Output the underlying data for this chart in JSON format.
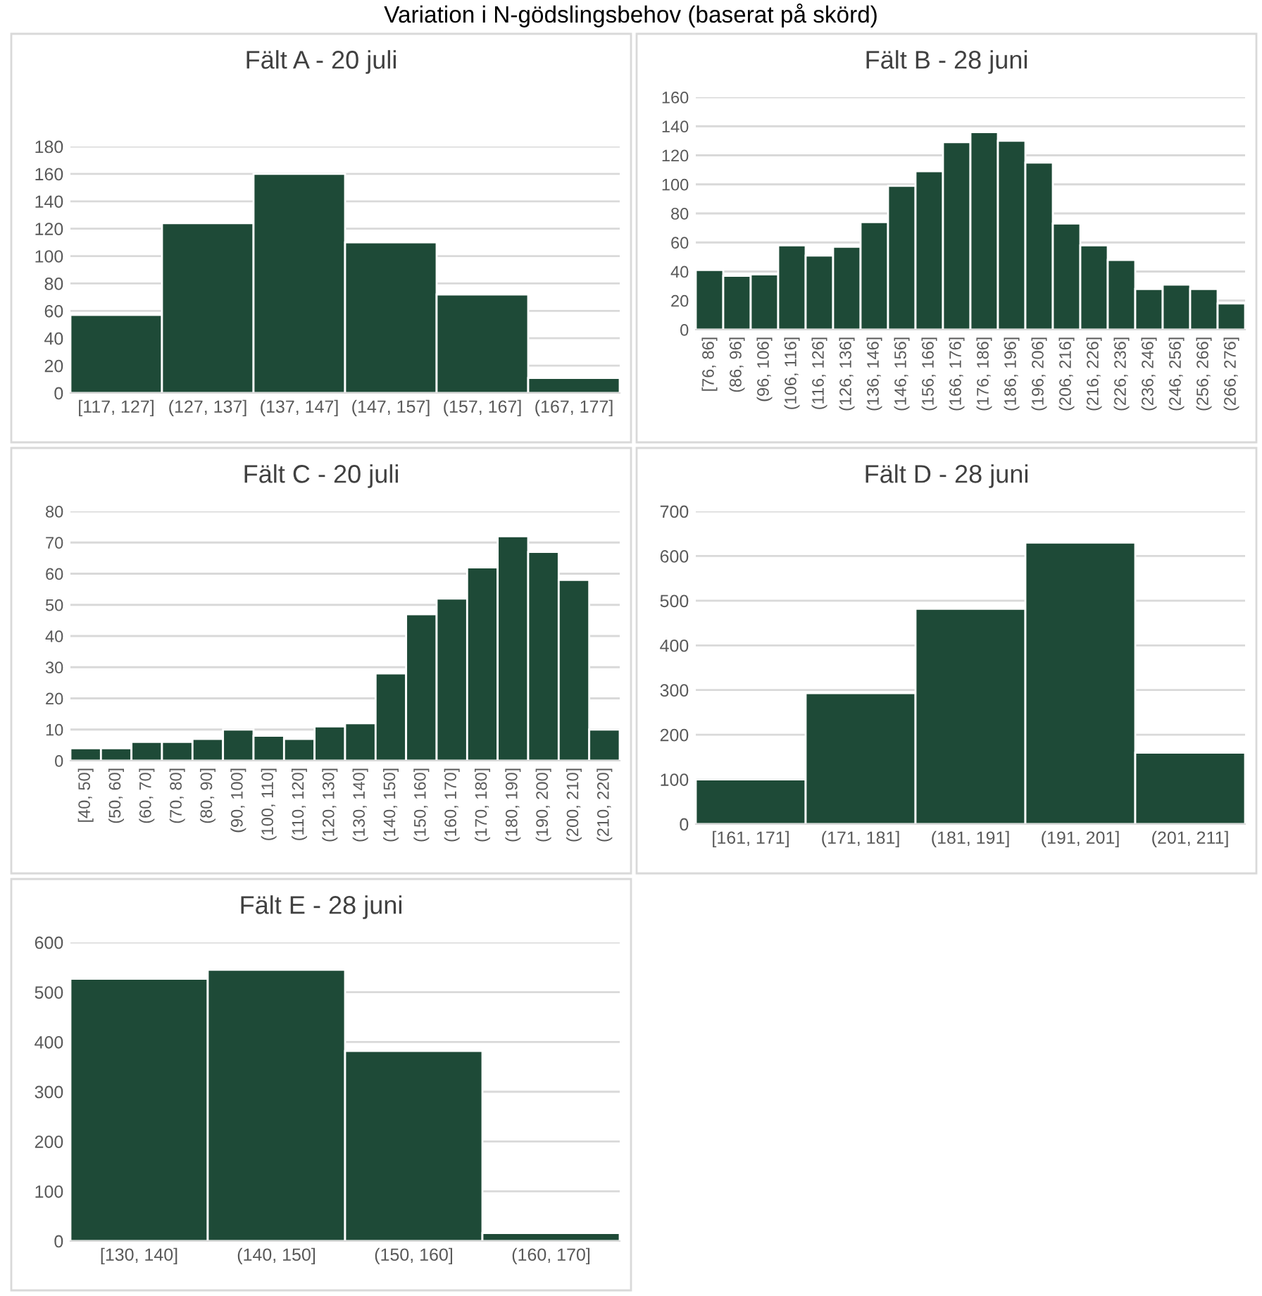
{
  "chart_data": [
    {
      "type": "bar",
      "title": "Fält A - 20 juli",
      "annotations": [
        "Variation i N-gödslingsbehov (baserat på skörd)"
      ],
      "categories": [
        "[117, 127]",
        "(127, 137]",
        "(137, 147]",
        "(147, 157]",
        "(157, 167]",
        "(167, 177]"
      ],
      "values": [
        57,
        124,
        160,
        110,
        72,
        11
      ],
      "color": "#1e4a37",
      "ylim": [
        0,
        180
      ],
      "yticks": [
        0,
        20,
        40,
        60,
        80,
        100,
        120,
        140,
        160,
        180
      ],
      "grid": "y",
      "legend": false
    },
    {
      "type": "bar",
      "title": "Fält B - 28 juni",
      "categories": [
        "[76, 86]",
        "(86, 96]",
        "(96, 106]",
        "(106, 116]",
        "(116, 126]",
        "(126, 136]",
        "(136, 146]",
        "(146, 156]",
        "(156, 166]",
        "(166, 176]",
        "(176, 186]",
        "(186, 196]",
        "(196, 206]",
        "(206, 216]",
        "(216, 226]",
        "(226, 236]",
        "(236, 246]",
        "(246, 256]",
        "(256, 266]",
        "(266, 276]"
      ],
      "values": [
        41,
        37,
        38,
        58,
        51,
        57,
        74,
        99,
        109,
        129,
        136,
        130,
        115,
        73,
        58,
        48,
        28,
        31,
        28,
        18
      ],
      "color": "#1e4a37",
      "ylim": [
        0,
        160
      ],
      "yticks": [
        0,
        20,
        40,
        60,
        80,
        100,
        120,
        140,
        160
      ],
      "grid": "y",
      "legend": false
    },
    {
      "type": "bar",
      "title": "Fält C - 20 juli",
      "categories": [
        "[40, 50]",
        "(50, 60]",
        "(60, 70]",
        "(70, 80]",
        "(80, 90]",
        "(90, 100]",
        "(100, 110]",
        "(110, 120]",
        "(120, 130]",
        "(130, 140]",
        "(140, 150]",
        "(150, 160]",
        "(160, 170]",
        "(170, 180]",
        "(180, 190]",
        "(190, 200]",
        "(200, 210]",
        "(210, 220]"
      ],
      "values": [
        4,
        4,
        6,
        6,
        7,
        10,
        8,
        7,
        11,
        12,
        28,
        47,
        52,
        62,
        72,
        67,
        58,
        10
      ],
      "color": "#1e4a37",
      "ylim": [
        0,
        80
      ],
      "yticks": [
        0,
        10,
        20,
        30,
        40,
        50,
        60,
        70,
        80
      ],
      "grid": "y",
      "legend": false
    },
    {
      "type": "bar",
      "title": "Fält D - 28 juni",
      "categories": [
        "[161, 171]",
        "(171, 181]",
        "(181, 191]",
        "(191, 201]",
        "(201, 211]"
      ],
      "values": [
        100,
        293,
        482,
        630,
        160
      ],
      "color": "#1e4a37",
      "ylim": [
        0,
        700
      ],
      "yticks": [
        0,
        100,
        200,
        300,
        400,
        500,
        600,
        700
      ],
      "grid": "y",
      "legend": false
    },
    {
      "type": "bar",
      "title": "Fält E - 28 juni",
      "categories": [
        "[130, 140]",
        "(140, 150]",
        "(150, 160]",
        "(160, 170]"
      ],
      "values": [
        527,
        545,
        382,
        16
      ],
      "color": "#1e4a37",
      "ylim": [
        0,
        600
      ],
      "yticks": [
        0,
        100,
        200,
        300,
        400,
        500,
        600
      ],
      "grid": "y",
      "legend": false
    }
  ]
}
